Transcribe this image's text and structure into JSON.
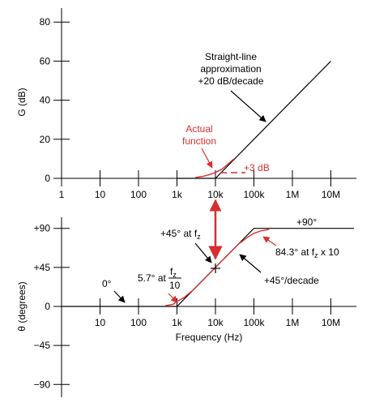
{
  "chart_data": [
    {
      "type": "line",
      "title": "",
      "xlabel": "",
      "ylabel": "G (dB)",
      "x_scale": "log",
      "xlim": [
        1,
        40000000
      ],
      "ylim": [
        0,
        85
      ],
      "x_ticks": [
        1,
        10,
        100,
        1000,
        10000,
        100000,
        1000000,
        10000000
      ],
      "x_tick_labels": [
        "1",
        "10",
        "100",
        "1k",
        "10k",
        "100k",
        "1M",
        "10M"
      ],
      "y_ticks": [
        0,
        20,
        40,
        60,
        80
      ],
      "y_tick_labels": [
        "0",
        "20",
        "40",
        "60",
        "80"
      ],
      "series": [
        {
          "role": "straight-line approximation",
          "color": "#000000",
          "x": [
            1000,
            10000,
            10000000
          ],
          "y": [
            0,
            0,
            60
          ]
        },
        {
          "role": "actual function",
          "color": "#d62f2f",
          "x": [
            3000,
            5000,
            7000,
            10000,
            15000,
            20000,
            30000
          ],
          "y": [
            0.4,
            1.1,
            1.9,
            3,
            4.8,
            6.9,
            9.9
          ]
        }
      ],
      "annotations": [
        {
          "lines": [
            "Straight-line",
            "approximation",
            "+20 dB/decade"
          ],
          "color": "#000000",
          "points_to": {
            "x": 60000,
            "y": 15
          }
        },
        {
          "lines": [
            "Actual",
            "function"
          ],
          "color": "#d62f2f",
          "points_to": {
            "x": 10000,
            "y": 3
          }
        },
        {
          "text": "+3 dB",
          "color": "#d62f2f",
          "at": {
            "x": 10000,
            "y": 3
          }
        }
      ]
    },
    {
      "type": "line",
      "title": "",
      "xlabel": "Frequency (Hz)",
      "ylabel": "θ (degrees)",
      "x_scale": "log",
      "xlim": [
        1,
        40000000
      ],
      "ylim": [
        -100,
        100
      ],
      "x_ticks": [
        10,
        100,
        1000,
        10000,
        100000,
        1000000,
        10000000
      ],
      "x_tick_labels": [
        "10",
        "100",
        "1k",
        "10k",
        "100k",
        "1M",
        "10M"
      ],
      "y_ticks": [
        -90,
        -45,
        0,
        45,
        90
      ],
      "y_tick_labels": [
        "−90",
        "−45",
        "0",
        "+45",
        "+90"
      ],
      "series": [
        {
          "role": "straight-line approximation",
          "color": "#000000",
          "x": [
            1,
            1000,
            100000,
            40000000
          ],
          "y": [
            0,
            0,
            90,
            90
          ]
        },
        {
          "role": "actual function",
          "color": "#d62f2f",
          "x": [
            500,
            800,
            1000,
            1500,
            2500,
            10000,
            40000,
            70000,
            100000,
            150000,
            250000
          ],
          "y": [
            0.8,
            2.5,
            5.7,
            10,
            18,
            45,
            72,
            80,
            84.3,
            87,
            89
          ]
        }
      ],
      "annotations": [
        {
          "text": "+90°",
          "color": "#000000"
        },
        {
          "text": "0°",
          "color": "#000000",
          "points_to": {
            "x": 60,
            "y": 0
          }
        },
        {
          "text": "+45° at f",
          "sub": "z",
          "color": "#000000",
          "points_to": {
            "x": 10000,
            "y": 45
          }
        },
        {
          "text": "5.7° at ",
          "frac_num": "f",
          "frac_num_sub": "z",
          "frac_den": "10",
          "color": "#000000",
          "points_to": {
            "x": 1000,
            "y": 5.7
          }
        },
        {
          "text": "84.3° at f",
          "sub": "z",
          "suffix": " x 10",
          "color": "#000000",
          "points_to": {
            "x": 100000,
            "y": 84.3
          }
        },
        {
          "text": "+45°/decade",
          "color": "#000000",
          "points_to": {
            "x": 25000,
            "y": 58
          }
        }
      ]
    }
  ],
  "colors": {
    "accent": "#d62f2f",
    "line": "#000000"
  }
}
